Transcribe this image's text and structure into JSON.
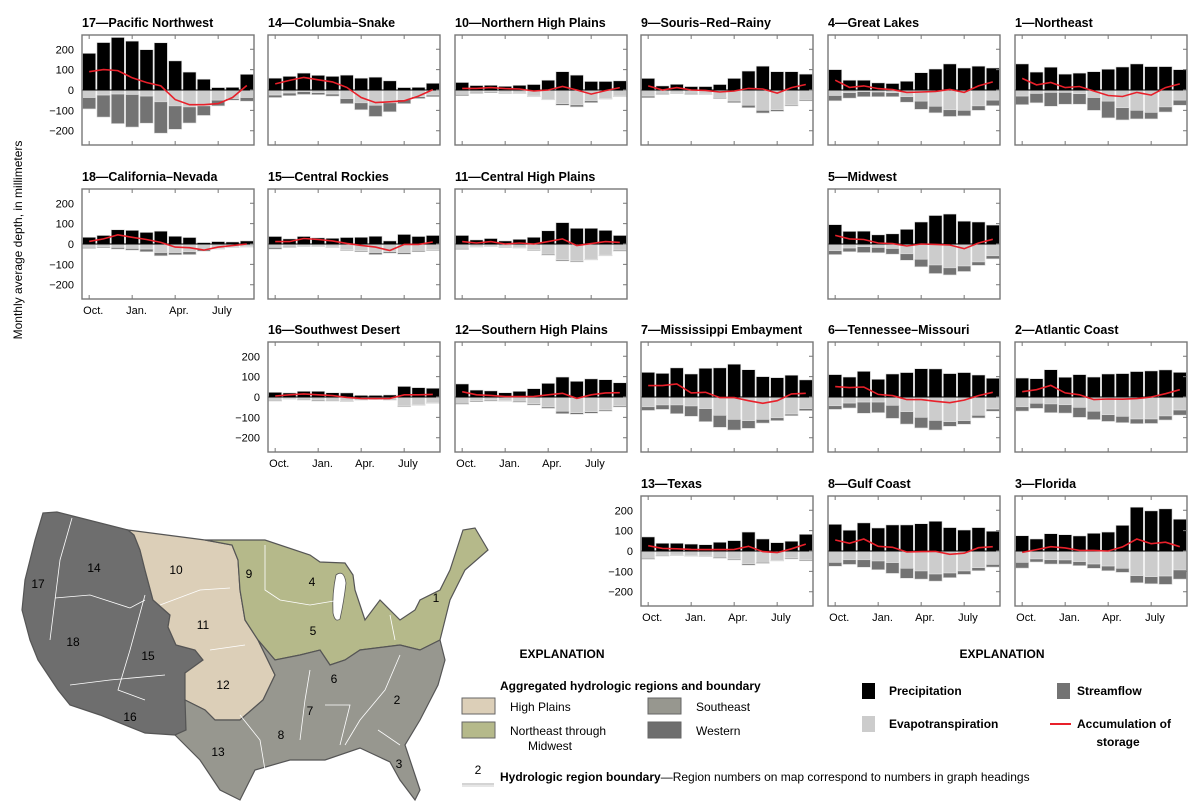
{
  "colors": {
    "precipitation": "#000000",
    "evapotranspiration": "#cccccc",
    "streamflow": "#737373",
    "storage": "#e8202a",
    "high_plains": "#dccfb8",
    "northeast_midwest": "#b5b98a",
    "southeast": "#97978f",
    "western": "#6e6e6e"
  },
  "chart_data": {
    "type": "bar",
    "subtype": "small-multiples stacked bar with line overlay",
    "ylabel": "Monthly average depth, in millimeters",
    "ylim": [
      -270,
      270
    ],
    "y_ticks": [
      200,
      100,
      0,
      -100,
      -200
    ],
    "y_tick_labels": [
      "200",
      "100",
      "0",
      "−100",
      "−200"
    ],
    "months": [
      "Oct",
      "Nov",
      "Dec",
      "Jan",
      "Feb",
      "Mar",
      "Apr",
      "May",
      "Jun",
      "Jul",
      "Aug",
      "Sep"
    ],
    "x_tick_labels": [
      "Oct.",
      "Jan.",
      "Apr.",
      "July"
    ],
    "grid": false,
    "panels": [
      {
        "title": "17—Pacific Northwest",
        "precipitation": [
          180,
          233,
          258,
          240,
          198,
          232,
          143,
          88,
          53,
          12,
          13,
          77
        ],
        "evapotranspiration": [
          -37,
          -25,
          -20,
          -22,
          -30,
          -58,
          -78,
          -83,
          -78,
          -50,
          -42,
          -37
        ],
        "streamflow": [
          -56,
          -108,
          -145,
          -160,
          -133,
          -154,
          -115,
          -79,
          -47,
          -28,
          -8,
          -18
        ],
        "storage": [
          90,
          100,
          95,
          60,
          37,
          20,
          -47,
          -72,
          -72,
          -67,
          -37,
          22
        ]
      },
      {
        "title": "14—Columbia–Snake",
        "precipitation": [
          58,
          67,
          83,
          72,
          67,
          73,
          58,
          63,
          45,
          12,
          13,
          33
        ],
        "evapotranspiration": [
          -25,
          -15,
          -8,
          -13,
          -20,
          -42,
          -63,
          -75,
          -63,
          -47,
          -33,
          -25
        ],
        "streamflow": [
          -12,
          -13,
          -14,
          -10,
          -10,
          -25,
          -34,
          -55,
          -44,
          -20,
          -9,
          -8
        ],
        "storage": [
          30,
          47,
          62,
          50,
          40,
          13,
          -37,
          -62,
          -58,
          -53,
          -30,
          2
        ]
      },
      {
        "title": "10—Northern High Plains",
        "precipitation": [
          37,
          22,
          23,
          18,
          23,
          27,
          48,
          90,
          73,
          42,
          42,
          45
        ],
        "evapotranspiration": [
          -22,
          -12,
          -8,
          -13,
          -15,
          -30,
          -47,
          -67,
          -73,
          -53,
          -42,
          -30
        ],
        "streamflow": [
          -6,
          -5,
          -5,
          -4,
          -3,
          -3,
          -1,
          -8,
          -10,
          -9,
          -3,
          -3
        ],
        "storage": [
          8,
          8,
          12,
          7,
          5,
          -5,
          0,
          17,
          0,
          -20,
          -3,
          12
        ]
      },
      {
        "title": "9—Souris–Red–Rainy",
        "precipitation": [
          57,
          20,
          28,
          17,
          17,
          27,
          57,
          93,
          117,
          90,
          90,
          78
        ],
        "evapotranspiration": [
          -30,
          -17,
          -13,
          -17,
          -20,
          -37,
          -55,
          -75,
          -100,
          -97,
          -73,
          -47
        ],
        "streamflow": [
          -8,
          -5,
          -4,
          -5,
          -3,
          -5,
          -7,
          -12,
          -13,
          -8,
          -5,
          -6
        ],
        "storage": [
          20,
          0,
          12,
          0,
          -2,
          -10,
          -5,
          8,
          5,
          -15,
          12,
          27
        ]
      },
      {
        "title": "4—Great Lakes",
        "precipitation": [
          100,
          48,
          48,
          35,
          32,
          43,
          85,
          103,
          128,
          108,
          117,
          108
        ],
        "evapotranspiration": [
          -27,
          -13,
          -8,
          -10,
          -13,
          -33,
          -55,
          -80,
          -97,
          -100,
          -78,
          -50
        ],
        "streamflow": [
          -26,
          -27,
          -25,
          -23,
          -20,
          -27,
          -40,
          -32,
          -33,
          -27,
          -22,
          -27
        ],
        "storage": [
          48,
          13,
          20,
          7,
          2,
          -12,
          -10,
          -7,
          3,
          -12,
          20,
          40
        ]
      },
      {
        "title": "1—Northeast",
        "precipitation": [
          128,
          88,
          112,
          78,
          83,
          90,
          102,
          113,
          128,
          115,
          115,
          100
        ],
        "evapotranspiration": [
          -30,
          -17,
          -12,
          -12,
          -18,
          -37,
          -55,
          -87,
          -100,
          -110,
          -83,
          -50
        ],
        "streamflow": [
          -42,
          -46,
          -68,
          -58,
          -52,
          -63,
          -82,
          -60,
          -42,
          -32,
          -25,
          -25
        ],
        "storage": [
          57,
          25,
          37,
          12,
          17,
          -5,
          -27,
          -32,
          -12,
          -25,
          12,
          30
        ]
      },
      {
        "title": "18—California–Nevada",
        "precipitation": [
          33,
          42,
          70,
          67,
          57,
          63,
          38,
          32,
          7,
          12,
          10,
          15
        ],
        "evapotranspiration": [
          -17,
          -13,
          -17,
          -22,
          -25,
          -42,
          -42,
          -38,
          -28,
          -22,
          -15,
          -12
        ],
        "streamflow": [
          -5,
          -5,
          -8,
          -8,
          -13,
          -16,
          -11,
          -14,
          -7,
          -3,
          -3,
          -3
        ],
        "storage": [
          13,
          25,
          45,
          33,
          22,
          8,
          -15,
          -18,
          -30,
          -15,
          -8,
          0
        ]
      },
      {
        "title": "15—Central Rockies",
        "precipitation": [
          37,
          25,
          37,
          30,
          28,
          32,
          33,
          38,
          15,
          47,
          37,
          42
        ],
        "evapotranspiration": [
          -17,
          -12,
          -8,
          -10,
          -15,
          -28,
          -33,
          -42,
          -38,
          -42,
          -32,
          -28
        ],
        "streamflow": [
          -8,
          -5,
          -4,
          -3,
          -3,
          -4,
          -5,
          -10,
          -7,
          -8,
          -6,
          -4
        ],
        "storage": [
          12,
          12,
          27,
          22,
          15,
          3,
          -7,
          -15,
          -32,
          -2,
          -2,
          10
        ]
      },
      {
        "title": "11—Central High Plains",
        "precipitation": [
          42,
          20,
          27,
          15,
          23,
          33,
          65,
          105,
          77,
          77,
          67,
          42
        ],
        "evapotranspiration": [
          -22,
          -12,
          -10,
          -13,
          -17,
          -28,
          -50,
          -77,
          -83,
          -75,
          -55,
          -30
        ],
        "streamflow": [
          -5,
          -3,
          -3,
          -4,
          -3,
          -4,
          -5,
          -6,
          -5,
          -3,
          -3,
          -5
        ],
        "storage": [
          12,
          5,
          12,
          0,
          5,
          0,
          12,
          25,
          -8,
          2,
          12,
          8
        ]
      },
      {
        "title": "5—Midwest",
        "precipitation": [
          95,
          62,
          63,
          45,
          50,
          72,
          108,
          140,
          147,
          112,
          108,
          93
        ],
        "evapotranspiration": [
          -33,
          -20,
          -13,
          -17,
          -22,
          -48,
          -75,
          -103,
          -117,
          -108,
          -88,
          -58
        ],
        "streamflow": [
          -19,
          -18,
          -29,
          -26,
          -28,
          -32,
          -37,
          -42,
          -35,
          -27,
          -17,
          -15
        ],
        "storage": [
          42,
          25,
          22,
          5,
          2,
          -10,
          0,
          -2,
          -5,
          -23,
          5,
          23
        ]
      },
      {
        "title": "16—Southwest Desert",
        "precipitation": [
          23,
          20,
          28,
          28,
          21,
          20,
          8,
          8,
          10,
          52,
          46,
          43
        ],
        "evapotranspiration": [
          -16,
          -8,
          -11,
          -15,
          -16,
          -20,
          -11,
          -10,
          -11,
          -44,
          -38,
          -28
        ],
        "streamflow": [
          -4,
          -3,
          -4,
          -5,
          -4,
          -3,
          -4,
          -3,
          -4,
          -4,
          -3,
          -3
        ],
        "storage": [
          5,
          11,
          15,
          11,
          7,
          -2,
          -7,
          -8,
          -7,
          11,
          11,
          13
        ]
      },
      {
        "title": "12—Southern High Plains",
        "precipitation": [
          64,
          34,
          30,
          21,
          28,
          41,
          67,
          98,
          77,
          89,
          85,
          70
        ],
        "evapotranspiration": [
          -31,
          -18,
          -15,
          -18,
          -21,
          -33,
          -49,
          -70,
          -77,
          -72,
          -64,
          -43
        ],
        "streamflow": [
          -5,
          -5,
          -5,
          -3,
          -5,
          -6,
          -7,
          -12,
          -8,
          -8,
          -6,
          -6
        ],
        "storage": [
          26,
          11,
          8,
          2,
          2,
          3,
          11,
          18,
          -7,
          11,
          20,
          21
        ]
      },
      {
        "title": "7—Mississippi Embayment",
        "precipitation": [
          121,
          116,
          143,
          113,
          141,
          143,
          161,
          134,
          100,
          95,
          107,
          84
        ],
        "evapotranspiration": [
          -48,
          -39,
          -39,
          -44,
          -57,
          -90,
          -110,
          -116,
          -110,
          -102,
          -84,
          -57
        ],
        "streamflow": [
          -18,
          -22,
          -43,
          -51,
          -64,
          -59,
          -52,
          -38,
          -18,
          -14,
          -8,
          -10
        ],
        "storage": [
          56,
          56,
          64,
          20,
          23,
          -3,
          -3,
          -18,
          -31,
          -18,
          15,
          18
        ]
      },
      {
        "title": "6—Tennessee–Missouri",
        "precipitation": [
          110,
          98,
          126,
          87,
          113,
          120,
          139,
          138,
          115,
          120,
          108,
          92
        ],
        "evapotranspiration": [
          -43,
          -30,
          -25,
          -25,
          -41,
          -72,
          -100,
          -115,
          -121,
          -116,
          -90,
          -59
        ],
        "streamflow": [
          -18,
          -24,
          -55,
          -52,
          -64,
          -61,
          -52,
          -47,
          -23,
          -18,
          -13,
          -11
        ],
        "storage": [
          51,
          46,
          49,
          13,
          7,
          -13,
          -13,
          -21,
          -28,
          -15,
          7,
          23
        ]
      },
      {
        "title": "2—Atlantic Coast",
        "precipitation": [
          93,
          90,
          134,
          97,
          110,
          98,
          113,
          115,
          125,
          128,
          133,
          121
        ],
        "evapotranspiration": [
          -48,
          -31,
          -34,
          -38,
          -51,
          -70,
          -87,
          -95,
          -108,
          -108,
          -93,
          -64
        ],
        "streamflow": [
          -21,
          -25,
          -43,
          -41,
          -49,
          -41,
          -33,
          -31,
          -23,
          -22,
          -20,
          -25
        ],
        "storage": [
          26,
          36,
          57,
          20,
          11,
          -13,
          -10,
          -11,
          -8,
          0,
          16,
          36
        ]
      },
      {
        "title": "13—Texas",
        "precipitation": [
          69,
          38,
          38,
          34,
          31,
          43,
          51,
          93,
          59,
          41,
          48,
          82
        ],
        "evapotranspiration": [
          -36,
          -21,
          -20,
          -23,
          -25,
          -31,
          -39,
          -62,
          -56,
          -46,
          -34,
          -43
        ],
        "streamflow": [
          -5,
          -4,
          -3,
          -3,
          -3,
          -5,
          -5,
          -7,
          -5,
          -3,
          -5,
          -5
        ],
        "storage": [
          26,
          13,
          11,
          8,
          7,
          7,
          8,
          23,
          -3,
          -8,
          11,
          34
        ]
      },
      {
        "title": "8—Gulf Coast",
        "precipitation": [
          131,
          102,
          138,
          113,
          128,
          128,
          134,
          146,
          115,
          103,
          115,
          97
        ],
        "evapotranspiration": [
          -56,
          -43,
          -43,
          -49,
          -57,
          -85,
          -98,
          -113,
          -108,
          -98,
          -82,
          -66
        ],
        "streamflow": [
          -19,
          -23,
          -37,
          -43,
          -53,
          -49,
          -40,
          -35,
          -23,
          -17,
          -15,
          -13
        ],
        "storage": [
          54,
          38,
          59,
          23,
          18,
          -5,
          -3,
          -2,
          -16,
          -11,
          16,
          21
        ]
      },
      {
        "title": "3—Florida",
        "precipitation": [
          75,
          59,
          85,
          80,
          74,
          87,
          93,
          126,
          215,
          197,
          207,
          156
        ],
        "evapotranspiration": [
          -56,
          -39,
          -43,
          -44,
          -52,
          -64,
          -74,
          -85,
          -121,
          -126,
          -123,
          -93
        ],
        "streamflow": [
          -28,
          -15,
          -21,
          -20,
          -20,
          -21,
          -23,
          -20,
          -35,
          -35,
          -41,
          -45
        ],
        "storage": [
          -7,
          7,
          21,
          15,
          3,
          3,
          0,
          20,
          59,
          36,
          43,
          21
        ]
      }
    ]
  },
  "chart_legend": {
    "title": "EXPLANATION",
    "precipitation": "Precipitation",
    "streamflow": "Streamflow",
    "evapotranspiration": "Evapotranspiration",
    "storage_line1": "Accumulation of",
    "storage_line2": "storage"
  },
  "map": {
    "region_labels": [
      "1",
      "2",
      "3",
      "4",
      "5",
      "6",
      "7",
      "8",
      "9",
      "10",
      "11",
      "12",
      "13",
      "14",
      "15",
      "16",
      "17",
      "18"
    ],
    "legend_title": "EXPLANATION",
    "subtitle": "Aggregated hydrologic regions and boundary",
    "high_plains": "High Plains",
    "northeast_line1": "Northeast through",
    "northeast_line2": "Midwest",
    "southeast": "Southeast",
    "western": "Western",
    "boundary_sample_number": "2",
    "boundary_label": "Hydrologic region boundary",
    "boundary_desc": "—Region numbers on map correspond to numbers in graph headings"
  }
}
